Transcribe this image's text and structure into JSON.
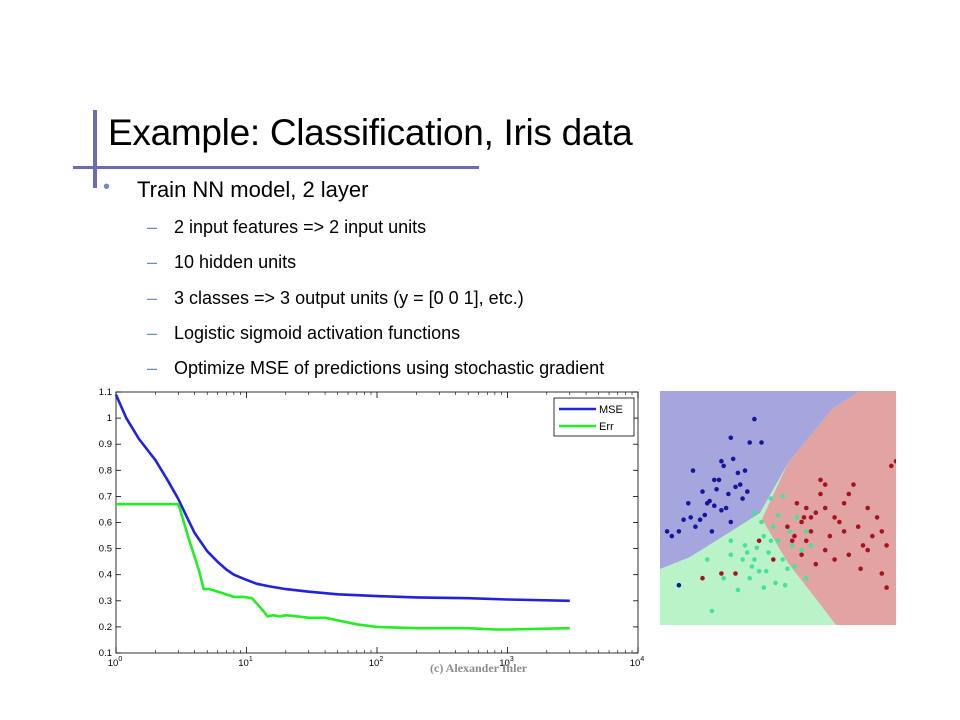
{
  "slide": {
    "title": "Example: Classification, Iris data",
    "bullet": "Train NN model, 2 layer",
    "dash": "–",
    "subbullets": [
      "2 input features => 2 input units",
      "10 hidden units",
      "3 classes => 3 output units   (y = [0 0 1], etc.)",
      "Logistic sigmoid activation functions",
      "Optimize MSE of predictions using stochastic gradient"
    ],
    "watermark": "(c) Alexander Ihler",
    "colors": {
      "accent": "#6b6bb6",
      "bullet": "#6b8fb9"
    }
  },
  "chart_data": [
    {
      "type": "line",
      "xscale": "log",
      "xlim": [
        1,
        10000
      ],
      "ylim": [
        0.1,
        1.1
      ],
      "grid": false,
      "legend_position": "top-right",
      "yticks": [
        "0.1",
        "0.2",
        "0.3",
        "0.4",
        "0.5",
        "0.6",
        "0.7",
        "0.8",
        "0.9",
        "1",
        "1.1"
      ],
      "xticks": [
        {
          "value": 1,
          "base": "10",
          "exp": "0"
        },
        {
          "value": 10,
          "base": "10",
          "exp": "1"
        },
        {
          "value": 100,
          "base": "10",
          "exp": "2"
        },
        {
          "value": 1000,
          "base": "10",
          "exp": "3"
        },
        {
          "value": 10000,
          "base": "10",
          "exp": "4"
        }
      ],
      "series": [
        {
          "name": "MSE",
          "color": "#2222dd",
          "x": [
            1,
            1.2,
            1.5,
            2,
            2.5,
            3,
            3.5,
            4,
            5,
            6,
            7,
            8,
            10,
            12,
            15,
            20,
            30,
            50,
            100,
            200,
            500,
            1000,
            3000
          ],
          "y": [
            1.09,
            1.0,
            0.92,
            0.84,
            0.76,
            0.69,
            0.62,
            0.56,
            0.49,
            0.45,
            0.42,
            0.4,
            0.38,
            0.365,
            0.355,
            0.345,
            0.335,
            0.325,
            0.318,
            0.313,
            0.31,
            0.305,
            0.3
          ]
        },
        {
          "name": "Err",
          "color": "#22ee22",
          "x": [
            1,
            2,
            3,
            3.1,
            3.6,
            4.3,
            4.7,
            5.2,
            6.5,
            8,
            9.5,
            11,
            13,
            14.5,
            16,
            18,
            20,
            25,
            30,
            40,
            50,
            70,
            100,
            200,
            500,
            800,
            1000,
            3000
          ],
          "y": [
            0.67,
            0.67,
            0.67,
            0.65,
            0.54,
            0.42,
            0.345,
            0.345,
            0.33,
            0.315,
            0.315,
            0.31,
            0.27,
            0.24,
            0.245,
            0.24,
            0.245,
            0.24,
            0.235,
            0.235,
            0.225,
            0.21,
            0.2,
            0.195,
            0.195,
            0.19,
            0.19,
            0.195
          ]
        }
      ]
    },
    {
      "type": "scatter",
      "xlim": [
        0,
        100
      ],
      "ylim": [
        0,
        100
      ],
      "region_colors": [
        "#a6a6de",
        "#e2a3a3",
        "#b9f3c7"
      ],
      "series": [
        {
          "color": "#16169a",
          "points": [
            [
              40,
              88
            ],
            [
              38,
              78
            ],
            [
              26,
              70
            ],
            [
              31,
              71
            ],
            [
              23,
              62
            ],
            [
              33,
              65
            ],
            [
              24,
              58
            ],
            [
              34,
              60
            ],
            [
              21,
              53
            ],
            [
              29,
              56
            ],
            [
              12,
              52
            ],
            [
              35,
              54
            ],
            [
              19,
              47
            ],
            [
              26,
              49
            ],
            [
              30,
              44
            ],
            [
              13,
              46
            ],
            [
              10,
              45
            ],
            [
              17,
              45
            ],
            [
              28,
              50
            ],
            [
              22,
              40
            ],
            [
              15,
              42
            ],
            [
              5,
              38
            ],
            [
              8,
              40
            ],
            [
              20,
              52
            ],
            [
              36,
              66
            ],
            [
              37,
              57
            ],
            [
              25,
              62
            ],
            [
              43,
              78
            ],
            [
              30,
              80
            ],
            [
              32,
              59
            ],
            [
              27,
              68
            ],
            [
              3,
              40
            ],
            [
              18,
              57
            ],
            [
              23,
              51
            ],
            [
              8,
              17
            ],
            [
              14,
              66
            ]
          ]
        },
        {
          "color": "#45e39a",
          "points": [
            [
              50,
              47
            ],
            [
              48,
              42
            ],
            [
              44,
              38
            ],
            [
              47,
              36
            ],
            [
              36,
              34
            ],
            [
              40,
              28
            ],
            [
              42,
              23
            ],
            [
              38,
              20
            ],
            [
              33,
              15
            ],
            [
              35,
              28
            ],
            [
              30,
              30
            ],
            [
              52,
              28
            ],
            [
              54,
              24
            ],
            [
              56,
              34
            ],
            [
              60,
              32
            ],
            [
              62,
              20
            ],
            [
              57,
              25
            ],
            [
              46,
              31
            ],
            [
              41,
              33
            ],
            [
              44,
              16
            ],
            [
              49,
              18
            ],
            [
              53,
              17
            ],
            [
              45,
              23
            ],
            [
              39,
              25
            ],
            [
              37,
              31
            ],
            [
              55,
              40
            ],
            [
              58,
              46
            ],
            [
              47,
              54
            ],
            [
              40,
              48
            ],
            [
              22,
              6
            ],
            [
              27,
              20
            ],
            [
              20,
              28
            ],
            [
              62,
              40
            ],
            [
              64,
              34
            ],
            [
              50,
              36
            ],
            [
              43,
              44
            ],
            [
              52,
              55
            ],
            [
              30,
              36
            ]
          ]
        },
        {
          "color": "#a8121e",
          "points": [
            [
              58,
              52
            ],
            [
              60,
              44
            ],
            [
              62,
              50
            ],
            [
              64,
              46
            ],
            [
              66,
              48
            ],
            [
              68,
              56
            ],
            [
              70,
              50
            ],
            [
              72,
              38
            ],
            [
              74,
              46
            ],
            [
              76,
              44
            ],
            [
              78,
              52
            ],
            [
              80,
              56
            ],
            [
              82,
              60
            ],
            [
              84,
              42
            ],
            [
              86,
              34
            ],
            [
              88,
              50
            ],
            [
              90,
              38
            ],
            [
              92,
              46
            ],
            [
              94,
              40
            ],
            [
              96,
              34
            ],
            [
              98,
              68
            ],
            [
              100,
              70
            ],
            [
              56,
              36
            ],
            [
              54,
              42
            ],
            [
              60,
              30
            ],
            [
              62,
              36
            ],
            [
              64,
              40
            ],
            [
              66,
              26
            ],
            [
              70,
              32
            ],
            [
              74,
              28
            ],
            [
              78,
              40
            ],
            [
              80,
              30
            ],
            [
              85,
              24
            ],
            [
              88,
              32
            ],
            [
              94,
              22
            ],
            [
              96,
              16
            ],
            [
              61,
              46
            ],
            [
              57,
              38
            ],
            [
              48,
              28
            ],
            [
              42,
              36
            ],
            [
              32,
              22
            ],
            [
              26,
              22
            ],
            [
              18,
              20
            ],
            [
              70,
              60
            ],
            [
              68,
              62
            ]
          ]
        }
      ]
    }
  ]
}
